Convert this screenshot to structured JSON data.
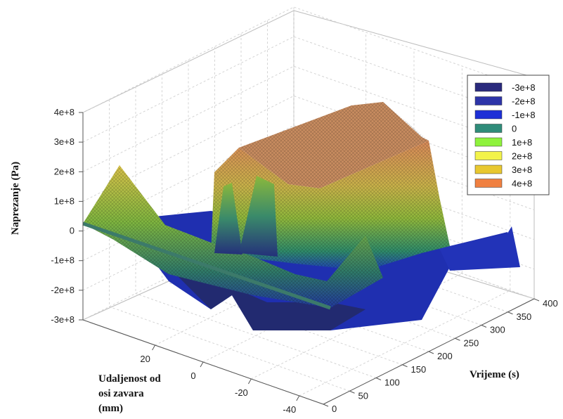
{
  "chart_data": {
    "type": "surface",
    "zlabel": "Naprezanje (Pa)",
    "xlabel": "Udaljenost od osi zavara (mm)",
    "xlabel_lines": [
      "Udaljenost od",
      "osi zavara",
      "(mm)"
    ],
    "ylabel": "Vrijeme (s)",
    "x_ticks": [
      "20",
      "0",
      "-20",
      "-40"
    ],
    "y_ticks": [
      "0",
      "50",
      "100",
      "150",
      "200",
      "250",
      "300",
      "350",
      "400"
    ],
    "z_ticks": [
      "4e+8",
      "3e+8",
      "2e+8",
      "1e+8",
      "0",
      "-1e+8",
      "-2e+8",
      "-3e+8"
    ],
    "xlim": [
      50,
      -50
    ],
    "ylim": [
      0,
      400
    ],
    "zlim": [
      -300000000,
      400000000
    ],
    "grid": true,
    "legend_position": "top-right",
    "legend": [
      {
        "label": "-3e+8",
        "color": "#2a2a7c"
      },
      {
        "label": "-2e+8",
        "color": "#2d34a8"
      },
      {
        "label": "-1e+8",
        "color": "#1d2fd6"
      },
      {
        "label": "0",
        "color": "#2f8c7a"
      },
      {
        "label": "1e+8",
        "color": "#8ef23c"
      },
      {
        "label": "2e+8",
        "color": "#f3f34a"
      },
      {
        "label": "3e+8",
        "color": "#e8c830"
      },
      {
        "label": "4e+8",
        "color": "#f08040"
      }
    ]
  }
}
